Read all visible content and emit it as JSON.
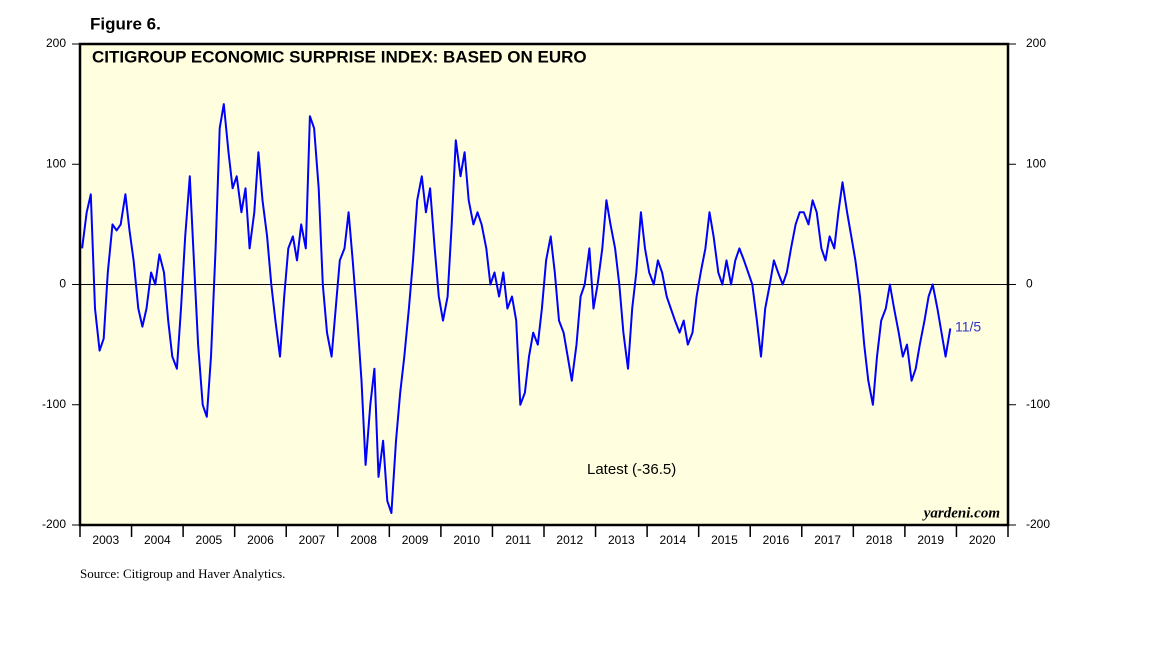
{
  "chart_data": {
    "type": "line",
    "figure_label": "Figure 6.",
    "title": "CITIGROUP ECONOMIC SURPRISE INDEX: BASED ON EURO",
    "annotations": {
      "latest": "Latest (-36.5)",
      "date": "11/5",
      "brand": "yardeni.com"
    },
    "source": "Source: Citigroup and Haver Analytics.",
    "categories": [
      "2003",
      "2004",
      "2005",
      "2006",
      "2007",
      "2008",
      "2009",
      "2010",
      "2011",
      "2012",
      "2013",
      "2014",
      "2015",
      "2016",
      "2017",
      "2018",
      "2019",
      "2020"
    ],
    "xlim": [
      2003,
      2021
    ],
    "ylim": [
      -200,
      200
    ],
    "yticks": [
      -200,
      -100,
      0,
      100,
      200
    ],
    "zero_line": true,
    "background": "#ffffe0",
    "series": [
      {
        "name": "Citigroup Economic Surprise Index: Euro",
        "color": "#0000ff",
        "x": [
          2003.04,
          2003.13,
          2003.21,
          2003.29,
          2003.38,
          2003.46,
          2003.54,
          2003.63,
          2003.71,
          2003.79,
          2003.88,
          2003.96,
          2004.04,
          2004.13,
          2004.21,
          2004.29,
          2004.38,
          2004.46,
          2004.54,
          2004.63,
          2004.71,
          2004.79,
          2004.88,
          2004.96,
          2005.04,
          2005.13,
          2005.21,
          2005.29,
          2005.38,
          2005.46,
          2005.54,
          2005.63,
          2005.71,
          2005.79,
          2005.88,
          2005.96,
          2006.04,
          2006.13,
          2006.21,
          2006.29,
          2006.38,
          2006.46,
          2006.54,
          2006.63,
          2006.71,
          2006.79,
          2006.88,
          2006.96,
          2007.04,
          2007.13,
          2007.21,
          2007.29,
          2007.38,
          2007.46,
          2007.54,
          2007.63,
          2007.71,
          2007.79,
          2007.88,
          2007.96,
          2008.04,
          2008.13,
          2008.21,
          2008.29,
          2008.38,
          2008.46,
          2008.54,
          2008.63,
          2008.71,
          2008.79,
          2008.88,
          2008.96,
          2009.04,
          2009.13,
          2009.21,
          2009.29,
          2009.38,
          2009.46,
          2009.54,
          2009.63,
          2009.71,
          2009.79,
          2009.88,
          2009.96,
          2010.04,
          2010.13,
          2010.21,
          2010.29,
          2010.38,
          2010.46,
          2010.54,
          2010.63,
          2010.71,
          2010.79,
          2010.88,
          2010.96,
          2011.04,
          2011.13,
          2011.21,
          2011.29,
          2011.38,
          2011.46,
          2011.54,
          2011.63,
          2011.71,
          2011.79,
          2011.88,
          2011.96,
          2012.04,
          2012.13,
          2012.21,
          2012.29,
          2012.38,
          2012.46,
          2012.54,
          2012.63,
          2012.71,
          2012.79,
          2012.88,
          2012.96,
          2013.04,
          2013.13,
          2013.21,
          2013.29,
          2013.38,
          2013.46,
          2013.54,
          2013.63,
          2013.71,
          2013.79,
          2013.88,
          2013.96,
          2014.04,
          2014.13,
          2014.21,
          2014.29,
          2014.38,
          2014.46,
          2014.54,
          2014.63,
          2014.71,
          2014.79,
          2014.88,
          2014.96,
          2015.04,
          2015.13,
          2015.21,
          2015.29,
          2015.38,
          2015.46,
          2015.54,
          2015.63,
          2015.71,
          2015.79,
          2015.88,
          2015.96,
          2016.04,
          2016.13,
          2016.21,
          2016.29,
          2016.38,
          2016.46,
          2016.54,
          2016.63,
          2016.71,
          2016.79,
          2016.88,
          2016.96,
          2017.04,
          2017.13,
          2017.21,
          2017.29,
          2017.38,
          2017.46,
          2017.54,
          2017.63,
          2017.71,
          2017.79,
          2017.88,
          2017.96,
          2018.04,
          2018.13,
          2018.21,
          2018.29,
          2018.38,
          2018.46,
          2018.54,
          2018.63,
          2018.71,
          2018.79,
          2018.88,
          2018.96,
          2019.04,
          2019.13,
          2019.21,
          2019.29,
          2019.38,
          2019.46,
          2019.54,
          2019.63,
          2019.71,
          2019.79,
          2019.88
        ],
        "values": [
          30,
          60,
          75,
          -20,
          -55,
          -45,
          10,
          50,
          45,
          50,
          75,
          45,
          20,
          -20,
          -35,
          -20,
          10,
          0,
          25,
          10,
          -30,
          -60,
          -70,
          -20,
          40,
          90,
          20,
          -50,
          -100,
          -110,
          -60,
          30,
          130,
          150,
          110,
          80,
          90,
          60,
          80,
          30,
          60,
          110,
          70,
          40,
          0,
          -30,
          -60,
          -10,
          30,
          40,
          20,
          50,
          30,
          140,
          130,
          80,
          0,
          -40,
          -60,
          -20,
          20,
          30,
          60,
          20,
          -30,
          -80,
          -150,
          -100,
          -70,
          -160,
          -130,
          -180,
          -190,
          -130,
          -90,
          -60,
          -20,
          20,
          70,
          90,
          60,
          80,
          30,
          -10,
          -30,
          -10,
          50,
          120,
          90,
          110,
          70,
          50,
          60,
          50,
          30,
          0,
          10,
          -10,
          10,
          -20,
          -10,
          -30,
          -100,
          -90,
          -60,
          -40,
          -50,
          -20,
          20,
          40,
          10,
          -30,
          -40,
          -60,
          -80,
          -50,
          -10,
          0,
          30,
          -20,
          0,
          30,
          70,
          50,
          30,
          0,
          -40,
          -70,
          -20,
          10,
          60,
          30,
          10,
          0,
          20,
          10,
          -10,
          -20,
          -30,
          -40,
          -30,
          -50,
          -40,
          -10,
          10,
          30,
          60,
          40,
          10,
          0,
          20,
          0,
          20,
          30,
          20,
          10,
          0,
          -30,
          -60,
          -20,
          0,
          20,
          10,
          0,
          10,
          30,
          50,
          60,
          60,
          50,
          70,
          60,
          30,
          20,
          40,
          30,
          60,
          85,
          60,
          40,
          20,
          -10,
          -50,
          -80,
          -100,
          -60,
          -30,
          -20,
          0,
          -20,
          -40,
          -60,
          -50,
          -80,
          -70,
          -50,
          -30,
          -10,
          0,
          -20,
          -40,
          -60,
          -36.5
        ]
      }
    ]
  }
}
